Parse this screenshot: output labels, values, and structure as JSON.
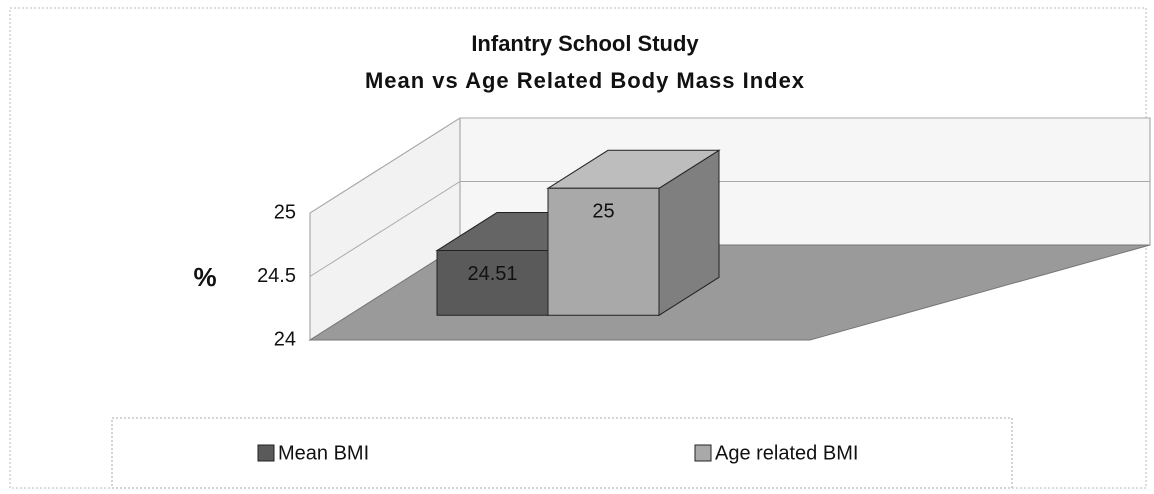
{
  "chart_data": {
    "type": "bar3d",
    "title": "Infantry School Study",
    "subtitle": "Mean vs Age Related Body Mass Index",
    "ylabel": "%",
    "series": [
      {
        "name": "Mean BMI",
        "color": "#5a5a5a",
        "values": [
          24.51
        ]
      },
      {
        "name": "Age related BMI",
        "color": "#a9a9a9",
        "values": [
          25
        ]
      }
    ],
    "ylim": [
      24,
      25
    ],
    "yticks": [
      24,
      24.5,
      25
    ],
    "grid": true,
    "legend": "bottom"
  }
}
